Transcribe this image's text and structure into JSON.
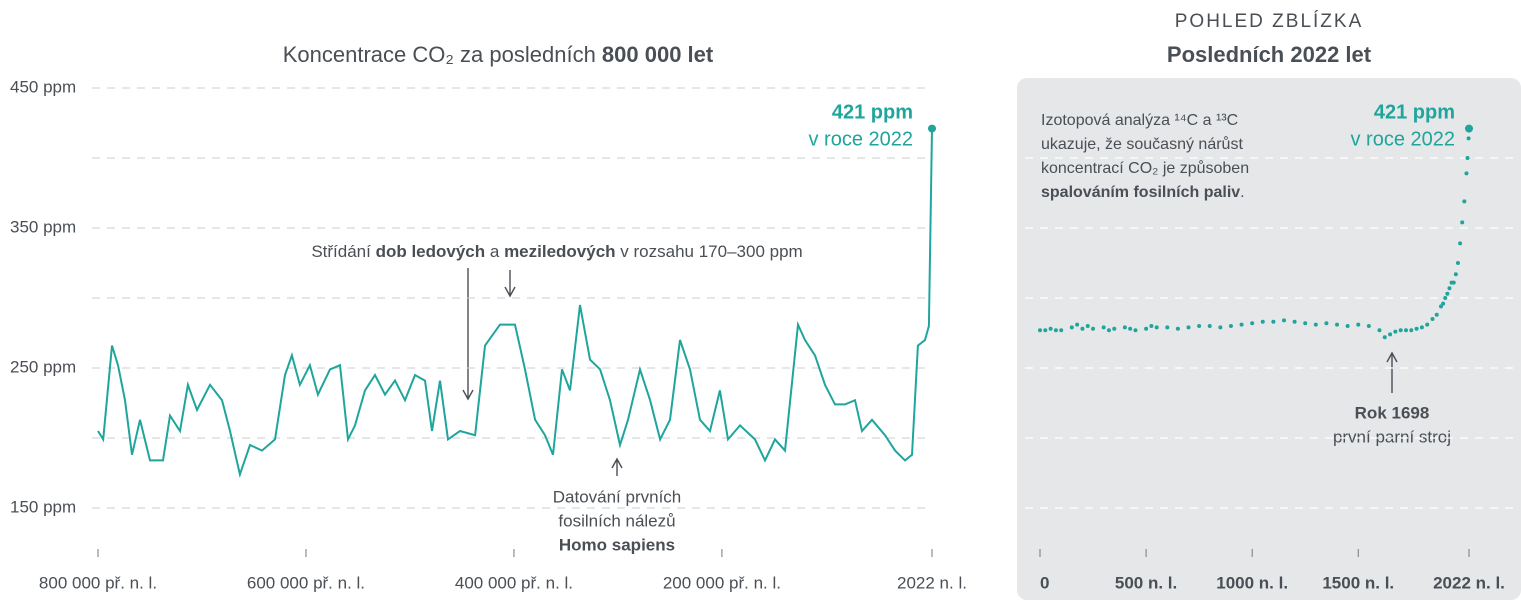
{
  "chart_data": [
    {
      "type": "line",
      "title_parts": [
        {
          "text": "Koncentrace CO₂ za posledních "
        },
        {
          "text": "800 000 let",
          "bold": true
        }
      ],
      "color": "#1fa59c",
      "x": [
        -800000,
        -795000,
        -786500,
        -780800,
        -774000,
        -767300,
        -759600,
        -750000,
        -737500,
        -730800,
        -721100,
        -713500,
        -704800,
        -692300,
        -680800,
        -673100,
        -663500,
        -653800,
        -642300,
        -629800,
        -620200,
        -613500,
        -605800,
        -596200,
        -588500,
        -576900,
        -567300,
        -559600,
        -552900,
        -543200,
        -533600,
        -524000,
        -514400,
        -504800,
        -495200,
        -485500,
        -478800,
        -471100,
        -463400,
        -451900,
        -437400,
        -427800,
        -413400,
        -399000,
        -389400,
        -379700,
        -370100,
        -362400,
        -353800,
        -346100,
        -336500,
        -326900,
        -317200,
        -307600,
        -298000,
        -290300,
        -278800,
        -269100,
        -259500,
        -249900,
        -240300,
        -230700,
        -221100,
        -211500,
        -201900,
        -194200,
        -182600,
        -168200,
        -158600,
        -149000,
        -139300,
        -126800,
        -120100,
        -110500,
        -100900,
        -91300,
        -81600,
        -72000,
        -65300,
        -55700,
        -43200,
        -33500,
        -23900,
        -17200,
        -11500,
        -4700,
        -1000,
        2022
      ],
      "values": [
        205,
        199,
        266,
        252,
        227,
        188,
        213,
        184,
        184,
        216,
        205,
        238,
        220,
        238,
        227,
        205,
        174,
        195,
        191,
        199,
        245,
        259,
        238,
        252,
        231,
        249,
        252,
        199,
        209,
        234,
        245,
        231,
        241,
        227,
        245,
        241,
        205,
        241,
        199,
        205,
        202,
        266,
        281,
        281,
        249,
        213,
        202,
        188,
        249,
        234,
        295,
        256,
        249,
        227,
        195,
        213,
        249,
        227,
        199,
        213,
        270,
        249,
        213,
        205,
        234,
        199,
        209,
        199,
        184,
        199,
        191,
        281,
        270,
        259,
        238,
        224,
        224,
        227,
        205,
        213,
        202,
        191,
        184,
        188,
        266,
        270,
        280,
        421
      ],
      "xlim": [
        -800000,
        2022
      ],
      "ylim": [
        125,
        450
      ],
      "xticks": [
        {
          "value": -800000,
          "label": "800 000 př. n. l."
        },
        {
          "value": -600000,
          "label": "600 000 př. n. l."
        },
        {
          "value": -400000,
          "label": "400 000 př. n. l."
        },
        {
          "value": -200000,
          "label": "200 000 př. n. l."
        },
        {
          "value": 2022,
          "label": "2022 n. l."
        }
      ],
      "yticks": [
        {
          "value": 450,
          "label": "450 ppm"
        },
        {
          "value": 350,
          "label": "350 ppm"
        },
        {
          "value": 250,
          "label": "250 ppm"
        },
        {
          "value": 150,
          "label": "150 ppm"
        }
      ],
      "grid_values": [
        450,
        400,
        350,
        300,
        250,
        200,
        150
      ],
      "end_label": "421 ppm",
      "end_note": "v roce 2022",
      "cycle_note": [
        {
          "text": "Střídání "
        },
        {
          "text": "dob ledových",
          "bold": true
        },
        {
          "text": " a "
        },
        {
          "text": "meziledových",
          "bold": true
        },
        {
          "text": " v rozsahu 170–300 ppm"
        }
      ],
      "fossil_note": [
        "Datování prvních",
        "fosilních nálezů"
      ],
      "fossil_note_bold": "Homo sapiens"
    },
    {
      "type": "scatter",
      "kicker": "POHLED ZBLÍZKA",
      "title": "Posledních 2022 let",
      "color": "#1fa59c",
      "x": [
        0,
        25,
        50,
        75,
        100,
        150,
        175,
        200,
        225,
        250,
        300,
        325,
        350,
        400,
        425,
        450,
        500,
        525,
        550,
        600,
        650,
        700,
        750,
        800,
        850,
        900,
        950,
        1000,
        1050,
        1100,
        1150,
        1200,
        1250,
        1300,
        1350,
        1400,
        1450,
        1500,
        1550,
        1600,
        1625,
        1650,
        1675,
        1700,
        1725,
        1750,
        1775,
        1800,
        1825,
        1850,
        1870,
        1890,
        1900,
        1910,
        1920,
        1930,
        1940,
        1950,
        1960,
        1970,
        1980,
        1990,
        2000,
        2010,
        2015,
        2020,
        2022
      ],
      "values": [
        277,
        277,
        278,
        277,
        277,
        279,
        281,
        278,
        280,
        278,
        279,
        277,
        278,
        279,
        278,
        277,
        278,
        280,
        279,
        279,
        278,
        279,
        280,
        280,
        279,
        280,
        281,
        282,
        283,
        283,
        284,
        283,
        282,
        281,
        282,
        281,
        280,
        281,
        280,
        277,
        272,
        274,
        276,
        277,
        277,
        277,
        278,
        279,
        281,
        285,
        288,
        294,
        296,
        300,
        303,
        307,
        311,
        311,
        317,
        325,
        339,
        354,
        369,
        389,
        400,
        414,
        421
      ],
      "xlim": [
        0,
        2022
      ],
      "ylim": [
        125,
        450
      ],
      "xticks": [
        0,
        {
          "value": 500,
          "label": "500 n. l."
        },
        {
          "value": 1000,
          "label": "1000 n. l."
        },
        {
          "value": 1500,
          "label": "1500 n. l."
        },
        {
          "value": 2022,
          "label": "2022 n. l."
        }
      ],
      "grid_values": [
        400,
        350,
        300,
        250,
        200,
        150
      ],
      "end_label": "421 ppm",
      "end_note": "v roce 2022",
      "note_lines": [
        "Izotopová analýza ¹⁴C a ¹³C",
        "ukazuje, že současný nárůst",
        "koncentrací CO₂ je způsoben"
      ],
      "note_bold": "spalováním fosilních paliv",
      "note_end": ".",
      "event_label": "Rok 1698",
      "event_note": "první parní stroj"
    }
  ]
}
